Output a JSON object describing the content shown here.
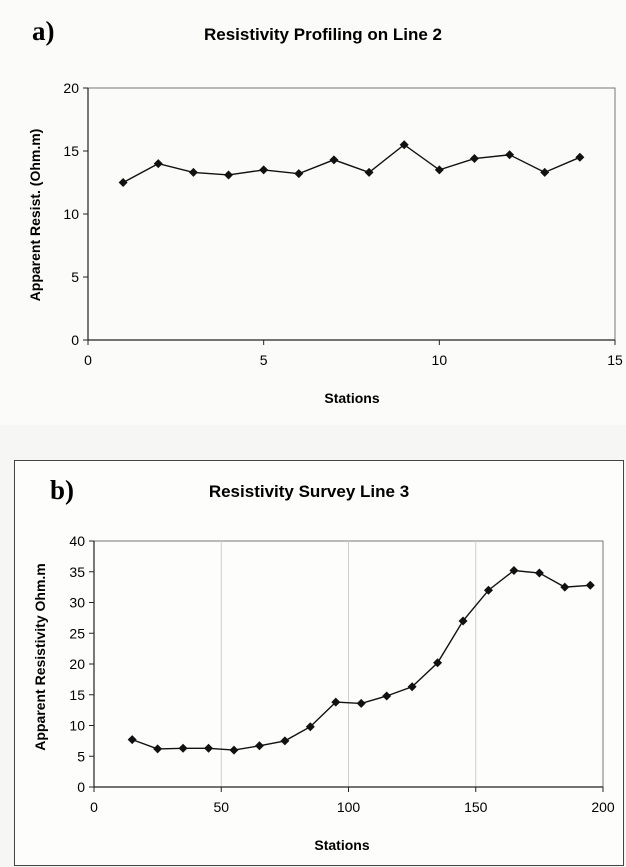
{
  "charts": [
    {
      "panel_label": "a)",
      "chart_data": {
        "type": "line",
        "title": "Resistivity Profiling on Line 2",
        "xlabel": "Stations",
        "ylabel": "Apparent Resist. (Ohm.m)",
        "xlim": [
          0,
          15
        ],
        "ylim": [
          0,
          20
        ],
        "xticks": [
          0,
          5,
          10,
          15
        ],
        "yticks": [
          0,
          5,
          10,
          15,
          20
        ],
        "grid": false,
        "series": [
          {
            "marker": "diamond",
            "color": "#111111",
            "x": [
              1,
              2,
              3,
              4,
              5,
              6,
              7,
              8,
              9,
              10,
              11,
              12,
              13,
              14
            ],
            "y": [
              12.5,
              14.0,
              13.3,
              13.1,
              13.5,
              13.2,
              14.3,
              13.3,
              15.5,
              13.5,
              14.4,
              14.7,
              13.3,
              14.5
            ]
          }
        ]
      }
    },
    {
      "panel_label": "b)",
      "chart_data": {
        "type": "line",
        "title": "Resistivity Survey Line 3",
        "xlabel": "Stations",
        "ylabel": "Apparent Resistivity Ohm.m",
        "xlim": [
          0,
          200
        ],
        "ylim": [
          0,
          40
        ],
        "xticks": [
          0,
          50,
          100,
          150,
          200
        ],
        "yticks": [
          0,
          5,
          10,
          15,
          20,
          25,
          30,
          35,
          40
        ],
        "grid": true,
        "series": [
          {
            "marker": "diamond",
            "color": "#111111",
            "x": [
              15,
              25,
              35,
              45,
              55,
              65,
              75,
              85,
              95,
              105,
              115,
              125,
              135,
              145,
              155,
              165,
              175,
              185,
              195
            ],
            "y": [
              7.7,
              6.2,
              6.3,
              6.3,
              6.0,
              6.7,
              7.5,
              9.8,
              13.8,
              13.6,
              14.8,
              16.3,
              20.2,
              27.0,
              32.0,
              35.2,
              34.8,
              32.5,
              32.8
            ]
          }
        ]
      }
    }
  ]
}
